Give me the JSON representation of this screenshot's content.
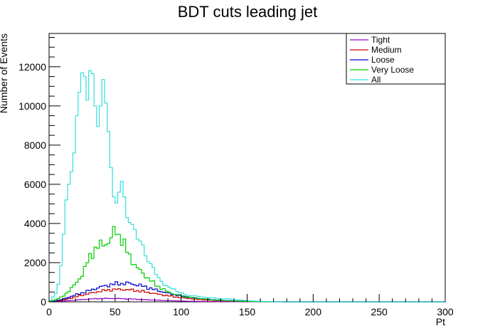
{
  "chart_data": {
    "type": "histogram-step",
    "title": "BDT cuts leading jet",
    "xlabel": "Pt",
    "ylabel": "Number of Events",
    "xlim": [
      0,
      300
    ],
    "ylim": [
      0,
      13700
    ],
    "bin_width": 2,
    "x_ticks": [
      0,
      50,
      100,
      150,
      200,
      250,
      300
    ],
    "y_ticks": [
      0,
      2000,
      4000,
      6000,
      8000,
      10000,
      12000
    ],
    "grid": false,
    "legend_position": "top-right",
    "series": [
      {
        "name": "Tight",
        "color": "#9900cc",
        "x": [
          0,
          10,
          20,
          30,
          40,
          50,
          60,
          70,
          80,
          90,
          100,
          110,
          120,
          130,
          140,
          150,
          160,
          170,
          180
        ],
        "y": [
          0,
          30,
          90,
          140,
          170,
          170,
          150,
          120,
          90,
          60,
          40,
          25,
          15,
          10,
          5,
          3,
          2,
          0,
          0
        ]
      },
      {
        "name": "Medium",
        "color": "#cc0000",
        "x": [
          0,
          10,
          20,
          30,
          40,
          50,
          60,
          70,
          80,
          90,
          100,
          110,
          120,
          130,
          140,
          150,
          160,
          170,
          180
        ],
        "y": [
          0,
          80,
          250,
          420,
          560,
          640,
          620,
          540,
          420,
          310,
          210,
          140,
          90,
          55,
          30,
          15,
          8,
          4,
          0
        ]
      },
      {
        "name": "Loose",
        "color": "#0000cc",
        "x": [
          0,
          10,
          20,
          30,
          40,
          50,
          60,
          70,
          80,
          90,
          100,
          110,
          120,
          130,
          140,
          150,
          160,
          170,
          180
        ],
        "y": [
          0,
          120,
          350,
          560,
          780,
          920,
          950,
          820,
          620,
          440,
          300,
          200,
          130,
          80,
          45,
          25,
          12,
          5,
          0
        ]
      },
      {
        "name": "Very Loose",
        "color": "#00cc00",
        "x": [
          0,
          10,
          14,
          20,
          26,
          30,
          36,
          40,
          46,
          50,
          56,
          60,
          66,
          70,
          76,
          80,
          90,
          100,
          110,
          120,
          130,
          140,
          150,
          160,
          170,
          180
        ],
        "y": [
          0,
          250,
          500,
          900,
          1500,
          2200,
          2800,
          2900,
          3100,
          3700,
          3100,
          2400,
          1800,
          1500,
          1150,
          900,
          500,
          300,
          200,
          120,
          70,
          40,
          20,
          10,
          5,
          0
        ]
      },
      {
        "name": "All",
        "color": "#33dddd",
        "x": [
          0,
          6,
          8,
          10,
          12,
          14,
          16,
          18,
          20,
          22,
          24,
          26,
          28,
          30,
          32,
          34,
          36,
          38,
          40,
          42,
          44,
          46,
          48,
          50,
          52,
          54,
          56,
          58,
          60,
          62,
          64,
          66,
          68,
          70,
          72,
          74,
          76,
          78,
          80,
          82,
          84,
          86,
          88,
          90,
          92,
          94,
          96,
          98,
          100,
          105,
          110,
          115,
          120,
          125,
          130,
          135,
          140,
          145,
          150,
          155,
          160,
          165,
          170,
          175,
          180
        ],
        "y": [
          0,
          500,
          1300,
          2400,
          4500,
          5900,
          6100,
          7200,
          8000,
          11000,
          10400,
          13000,
          10000,
          10600,
          13000,
          10300,
          9700,
          8200,
          11800,
          10900,
          9400,
          8000,
          5700,
          5000,
          5100,
          6100,
          6200,
          4500,
          4100,
          4000,
          3900,
          3500,
          2900,
          3300,
          2500,
          2200,
          1900,
          2000,
          1500,
          1300,
          1200,
          900,
          800,
          850,
          650,
          700,
          600,
          450,
          500,
          300,
          320,
          250,
          220,
          200,
          150,
          160,
          100,
          90,
          60,
          40,
          30,
          20,
          10,
          5,
          0
        ]
      }
    ]
  }
}
